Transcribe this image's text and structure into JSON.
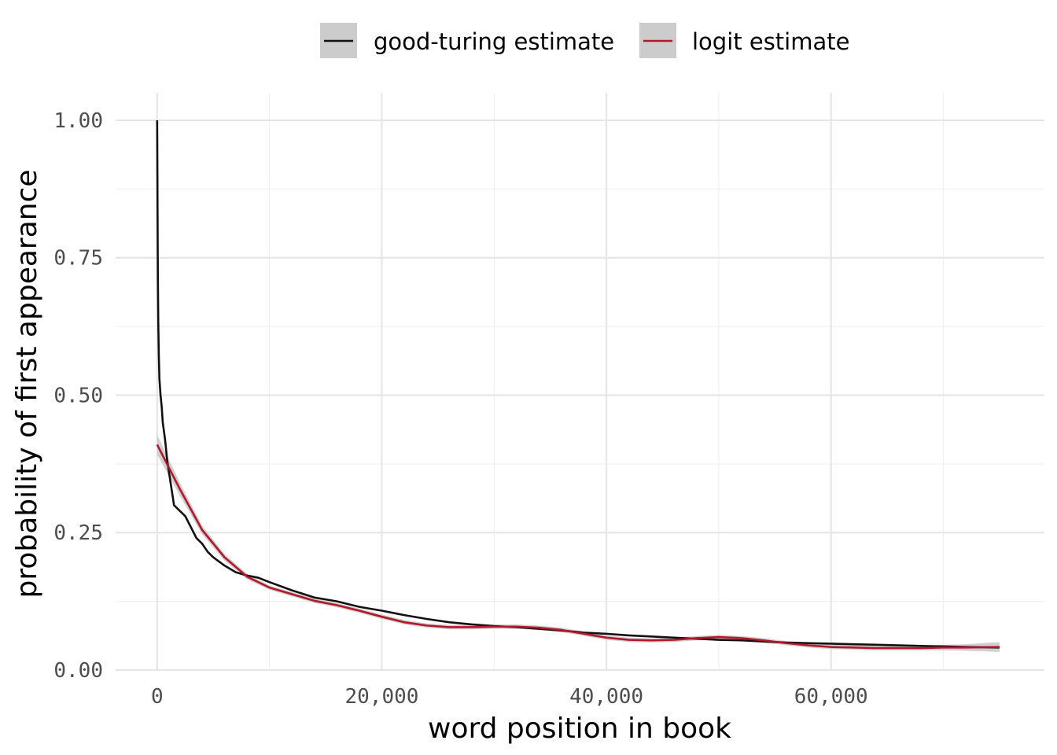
{
  "chart_data": {
    "type": "line",
    "xlabel": "word position in book",
    "ylabel": "probability of first appearance",
    "xlim": [
      -3700,
      79000
    ],
    "ylim": [
      0,
      1.05
    ],
    "x_ticks": [
      0,
      20000,
      40000,
      60000
    ],
    "x_tick_labels": [
      "0",
      "20,000",
      "40,000",
      "60,000"
    ],
    "y_ticks": [
      0,
      0.25,
      0.5,
      0.75,
      1.0
    ],
    "y_tick_labels": [
      "0.00",
      "0.25",
      "0.50",
      "0.75",
      "1.00"
    ],
    "grid": true,
    "legend_position": "top",
    "series": [
      {
        "name": "good-turing estimate",
        "color": "#111111",
        "confidence_band": false,
        "x": [
          0,
          30,
          60,
          100,
          150,
          200,
          300,
          400,
          500,
          700,
          900,
          1200,
          1500,
          2000,
          2500,
          3000,
          3500,
          4000,
          4500,
          5000,
          6000,
          7000,
          8000,
          9000,
          10000,
          12000,
          14000,
          16000,
          18000,
          20000,
          22000,
          24000,
          26000,
          28000,
          30000,
          32000,
          34000,
          36000,
          38000,
          40000,
          42000,
          44000,
          46000,
          48000,
          50000,
          52000,
          54000,
          56000,
          58000,
          60000,
          62000,
          64000,
          66000,
          68000,
          70000,
          72000,
          75000
        ],
        "y": [
          1.0,
          0.85,
          0.72,
          0.63,
          0.57,
          0.53,
          0.5,
          0.48,
          0.45,
          0.42,
          0.38,
          0.34,
          0.3,
          0.29,
          0.28,
          0.26,
          0.24,
          0.23,
          0.215,
          0.205,
          0.19,
          0.178,
          0.172,
          0.168,
          0.16,
          0.145,
          0.132,
          0.125,
          0.115,
          0.108,
          0.1,
          0.093,
          0.087,
          0.083,
          0.08,
          0.078,
          0.075,
          0.072,
          0.068,
          0.066,
          0.063,
          0.061,
          0.059,
          0.057,
          0.055,
          0.054,
          0.052,
          0.05,
          0.049,
          0.048,
          0.047,
          0.046,
          0.045,
          0.044,
          0.043,
          0.042,
          0.041
        ]
      },
      {
        "name": "logit estimate",
        "color": "#b2182b",
        "confidence_band": true,
        "band_color": "#c8c8c8",
        "x": [
          0,
          2000,
          4000,
          6000,
          8000,
          10000,
          12000,
          14000,
          16000,
          18000,
          20000,
          22000,
          24000,
          26000,
          28000,
          30000,
          32000,
          34000,
          36000,
          38000,
          40000,
          42000,
          44000,
          46000,
          48000,
          50000,
          52000,
          54000,
          56000,
          58000,
          60000,
          62000,
          64000,
          66000,
          68000,
          70000,
          72000,
          75000
        ],
        "y": [
          0.41,
          0.33,
          0.255,
          0.205,
          0.17,
          0.15,
          0.138,
          0.126,
          0.118,
          0.108,
          0.097,
          0.087,
          0.081,
          0.078,
          0.078,
          0.079,
          0.079,
          0.077,
          0.073,
          0.066,
          0.059,
          0.055,
          0.054,
          0.055,
          0.058,
          0.06,
          0.058,
          0.054,
          0.049,
          0.045,
          0.042,
          0.041,
          0.04,
          0.04,
          0.04,
          0.041,
          0.041,
          0.042
        ],
        "band_halfwidth": [
          0.018,
          0.012,
          0.008,
          0.006,
          0.005,
          0.004,
          0.004,
          0.004,
          0.004,
          0.004,
          0.004,
          0.004,
          0.004,
          0.004,
          0.004,
          0.004,
          0.004,
          0.004,
          0.004,
          0.004,
          0.004,
          0.004,
          0.004,
          0.004,
          0.004,
          0.004,
          0.004,
          0.004,
          0.004,
          0.004,
          0.004,
          0.004,
          0.004,
          0.004,
          0.004,
          0.005,
          0.006,
          0.009
        ]
      }
    ]
  }
}
